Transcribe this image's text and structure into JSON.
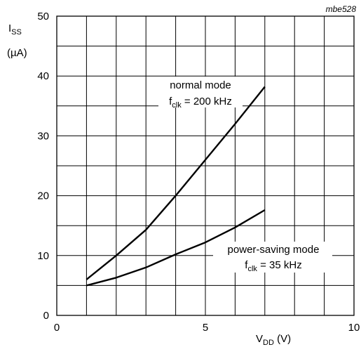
{
  "figure_code": "mbe528",
  "chart_data": {
    "type": "line",
    "ylabel_main": "I",
    "ylabel_sub": "SS",
    "ylabel_unit": "(µA)",
    "xlabel_main": "V",
    "xlabel_sub": "DD",
    "xlabel_unit": " (V)",
    "xlim": [
      0,
      10
    ],
    "ylim": [
      0,
      50
    ],
    "x_ticks": [
      0,
      5,
      10
    ],
    "y_ticks": [
      0,
      10,
      20,
      30,
      40,
      50
    ],
    "grid": true,
    "series": [
      {
        "name_line1": "normal mode",
        "name_f": "f",
        "name_sub": "clk",
        "name_rest": " = 200 kHz",
        "x": [
          1,
          2,
          3,
          4,
          5,
          6,
          7
        ],
        "values": [
          6,
          10,
          14.3,
          20,
          26,
          32,
          38.2
        ]
      },
      {
        "name_line1": "power-saving mode",
        "name_f": "f",
        "name_sub": "clk",
        "name_rest": " = 35 kHz",
        "x": [
          1,
          2,
          3,
          4,
          5,
          6,
          7
        ],
        "values": [
          5,
          6.3,
          8,
          10.2,
          12.2,
          14.7,
          17.6
        ]
      }
    ]
  }
}
